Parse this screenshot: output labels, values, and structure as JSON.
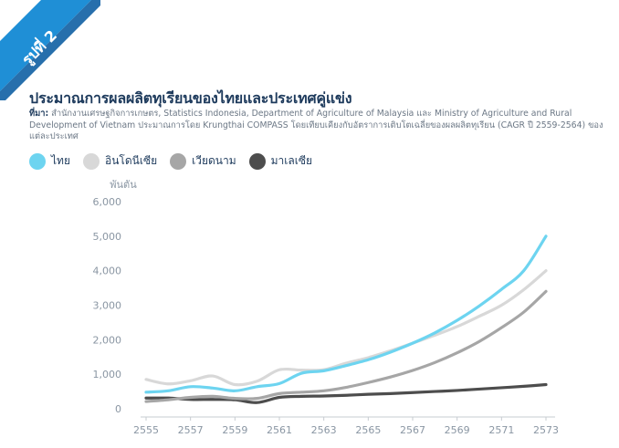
{
  "badge": {
    "label": "รูปที่ 2"
  },
  "title": "ประมาณการผลผลิตทุเรียนของไทยและประเทศคู่แข่ง",
  "source": {
    "prefix": "ที่มา:",
    "text": "สำนักงานเศรษฐกิจการเกษตร, Statistics Indonesia, Department of Agriculture of Malaysia และ Ministry of Agriculture and Rural Development of Vietnam ประมาณการโดย Krungthai COMPASS โดยเทียบเคียงกับอัตราการเติบโตเฉลี่ยของผลผลิตทุเรียน (CAGR ปี 2559-2564) ของแต่ละประเทศ"
  },
  "colors": {
    "brand": "#1f8fd6",
    "title": "#1d3a5c"
  },
  "chart_data": {
    "type": "line",
    "title": "ประมาณการผลผลิตทุเรียนของไทยและประเทศคู่แข่ง",
    "ylabel": "พันตัน",
    "xlabel": "",
    "ylim": [
      0,
      6000
    ],
    "yticks": [
      0,
      1000,
      2000,
      3000,
      4000,
      5000,
      6000
    ],
    "ytick_labels": [
      "0",
      "1,000",
      "2,000",
      "3,000",
      "4,000",
      "5,000",
      "6,000"
    ],
    "xticks": [
      2555,
      2557,
      2559,
      2561,
      2563,
      2565,
      2567,
      2569,
      2571,
      2573
    ],
    "xlim": [
      2555,
      2573
    ],
    "grid": false,
    "legend_position": "top-left",
    "series": [
      {
        "name": "ไทย",
        "color": "#6dd4f0",
        "x": [
          2555,
          2556,
          2557,
          2558,
          2559,
          2560,
          2561,
          2562,
          2563,
          2564,
          2565,
          2566,
          2567,
          2568,
          2569,
          2570,
          2571,
          2572,
          2573
        ],
        "values": [
          480,
          520,
          640,
          600,
          520,
          640,
          730,
          1030,
          1100,
          1250,
          1420,
          1640,
          1900,
          2200,
          2560,
          2980,
          3460,
          4000,
          5000
        ]
      },
      {
        "name": "อินโดนีเซีย",
        "color": "#d8d8d8",
        "x": [
          2555,
          2556,
          2557,
          2558,
          2559,
          2560,
          2561,
          2562,
          2563,
          2564,
          2565,
          2566,
          2567,
          2568,
          2569,
          2570,
          2571,
          2572,
          2573
        ],
        "values": [
          850,
          720,
          810,
          950,
          700,
          800,
          1130,
          1120,
          1130,
          1320,
          1480,
          1680,
          1900,
          2130,
          2380,
          2680,
          3000,
          3450,
          4000
        ]
      },
      {
        "name": "เวียดนาม",
        "color": "#a6a6a6",
        "x": [
          2555,
          2556,
          2557,
          2558,
          2559,
          2560,
          2561,
          2562,
          2563,
          2564,
          2565,
          2566,
          2567,
          2568,
          2569,
          2570,
          2571,
          2572,
          2573
        ],
        "values": [
          210,
          260,
          330,
          360,
          300,
          300,
          440,
          480,
          520,
          620,
          760,
          920,
          1110,
          1340,
          1620,
          1950,
          2350,
          2800,
          3400
        ]
      },
      {
        "name": "มาเลเซีย",
        "color": "#4d4d4d",
        "x": [
          2555,
          2556,
          2557,
          2558,
          2559,
          2560,
          2561,
          2562,
          2563,
          2564,
          2565,
          2566,
          2567,
          2568,
          2569,
          2570,
          2571,
          2572,
          2573
        ],
        "values": [
          310,
          310,
          270,
          270,
          260,
          180,
          330,
          360,
          370,
          390,
          420,
          440,
          470,
          500,
          530,
          570,
          610,
          650,
          700
        ]
      }
    ]
  }
}
